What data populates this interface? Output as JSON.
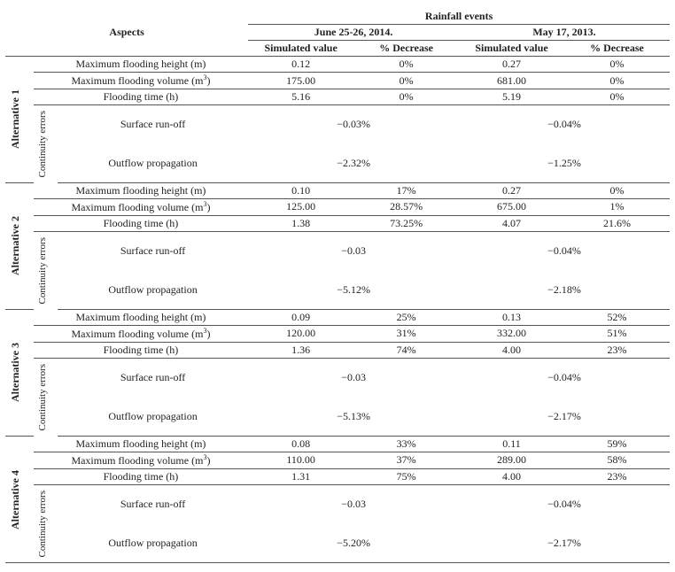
{
  "header": {
    "rainfall_events": "Rainfall events",
    "aspects": "Aspects",
    "event1": "June 25-26, 2014.",
    "event2": "May 17, 2013.",
    "sim_value": "Simulated value",
    "pct_decrease": "% Decrease"
  },
  "labels": {
    "max_height": "Maximum flooding height (m)",
    "max_volume_pre": "Maximum flooding volume (m",
    "max_volume_sup": "3",
    "max_volume_post": ")",
    "flood_time": "Flooding time (h)",
    "continuity_errors": "Continuity errors",
    "surface_runoff": "Surface run-off",
    "outflow_prop": "Outflow propagation"
  },
  "alt_names": {
    "a1": "Alternative 1",
    "a2": "Alternative 2",
    "a3": "Alternative 3",
    "a4": "Alternative 4"
  },
  "alt1": {
    "h1": "0.12",
    "h1p": "0%",
    "h2": "0.27",
    "h2p": "0%",
    "v1": "175.00",
    "v1p": "0%",
    "v2": "681.00",
    "v2p": "0%",
    "t1": "5.16",
    "t1p": "0%",
    "t2": "5.19",
    "t2p": "0%",
    "sr1": "−0.03%",
    "sr2": "−0.04%",
    "op1": "−2.32%",
    "op2": "−1.25%"
  },
  "alt2": {
    "h1": "0.10",
    "h1p": "17%",
    "h2": "0.27",
    "h2p": "0%",
    "v1": "125.00",
    "v1p": "28.57%",
    "v2": "675.00",
    "v2p": "1%",
    "t1": "1.38",
    "t1p": "73.25%",
    "t2": "4.07",
    "t2p": "21.6%",
    "sr1": "−0.03",
    "sr2": "−0.04%",
    "op1": "−5.12%",
    "op2": "−2.18%"
  },
  "alt3": {
    "h1": "0.09",
    "h1p": "25%",
    "h2": "0.13",
    "h2p": "52%",
    "v1": "120.00",
    "v1p": "31%",
    "v2": "332.00",
    "v2p": "51%",
    "t1": "1.36",
    "t1p": "74%",
    "t2": "4.00",
    "t2p": "23%",
    "sr1": "−0.03",
    "sr2": "−0.04%",
    "op1": "−5.13%",
    "op2": "−2.17%"
  },
  "alt4": {
    "h1": "0.08",
    "h1p": "33%",
    "h2": "0.11",
    "h2p": "59%",
    "v1": "110.00",
    "v1p": "37%",
    "v2": "289.00",
    "v2p": "58%",
    "t1": "1.31",
    "t1p": "75%",
    "t2": "4.00",
    "t2p": "23%",
    "sr1": "−0.03",
    "sr2": "−0.04%",
    "op1": "−5.20%",
    "op2": "−2.17%"
  }
}
